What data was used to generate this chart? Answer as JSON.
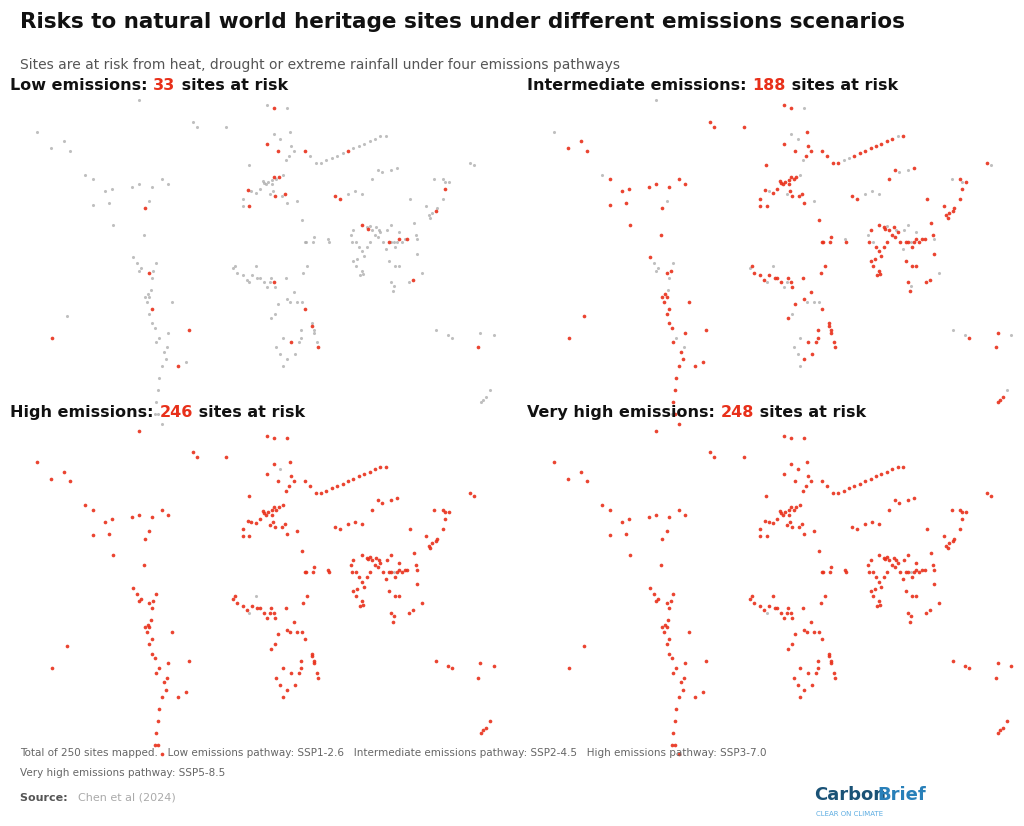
{
  "title": "Risks to natural world heritage sites under different emissions scenarios",
  "subtitle": "Sites are at risk from heat, drought or extreme rainfall under four emissions pathways",
  "footnote1": "Total of 250 sites mapped.   Low emissions pathway: SSP1-2.6   Intermediate emissions pathway: SSP2-4.5   High emissions pathway: SSP3-7.0",
  "footnote2": "Very high emissions pathway: SSP5-8.5",
  "source_bold": "Source: ",
  "source_normal": "Chen et al (2024)",
  "panels": [
    {
      "label_black1": "Low emissions: ",
      "label_red": "33",
      "label_black2": " sites at risk",
      "n_risk": 33
    },
    {
      "label_black1": "Intermediate emissions: ",
      "label_red": "188",
      "label_black2": " sites at risk",
      "n_risk": 188
    },
    {
      "label_black1": "High emissions: ",
      "label_red": "246",
      "label_black2": " sites at risk",
      "n_risk": 246
    },
    {
      "label_black1": "Very high emissions: ",
      "label_red": "248",
      "label_black2": " sites at risk",
      "n_risk": 248
    }
  ],
  "background_color": "#ffffff",
  "ocean_color": "#cce9f5",
  "land_color": "#f0f0f0",
  "border_color": "#c0c0c0",
  "dot_risk_color": "#e8301a",
  "dot_safe_color": "#aaaaaa",
  "title_color": "#111111",
  "subtitle_color": "#555555",
  "footnote_color": "#666666",
  "red_number_color": "#e8301a",
  "panel_label_color": "#111111",
  "cb_dark_blue": "#1a5276",
  "cb_light_blue": "#2980b9",
  "cb_subtitle_color": "#5dade2"
}
